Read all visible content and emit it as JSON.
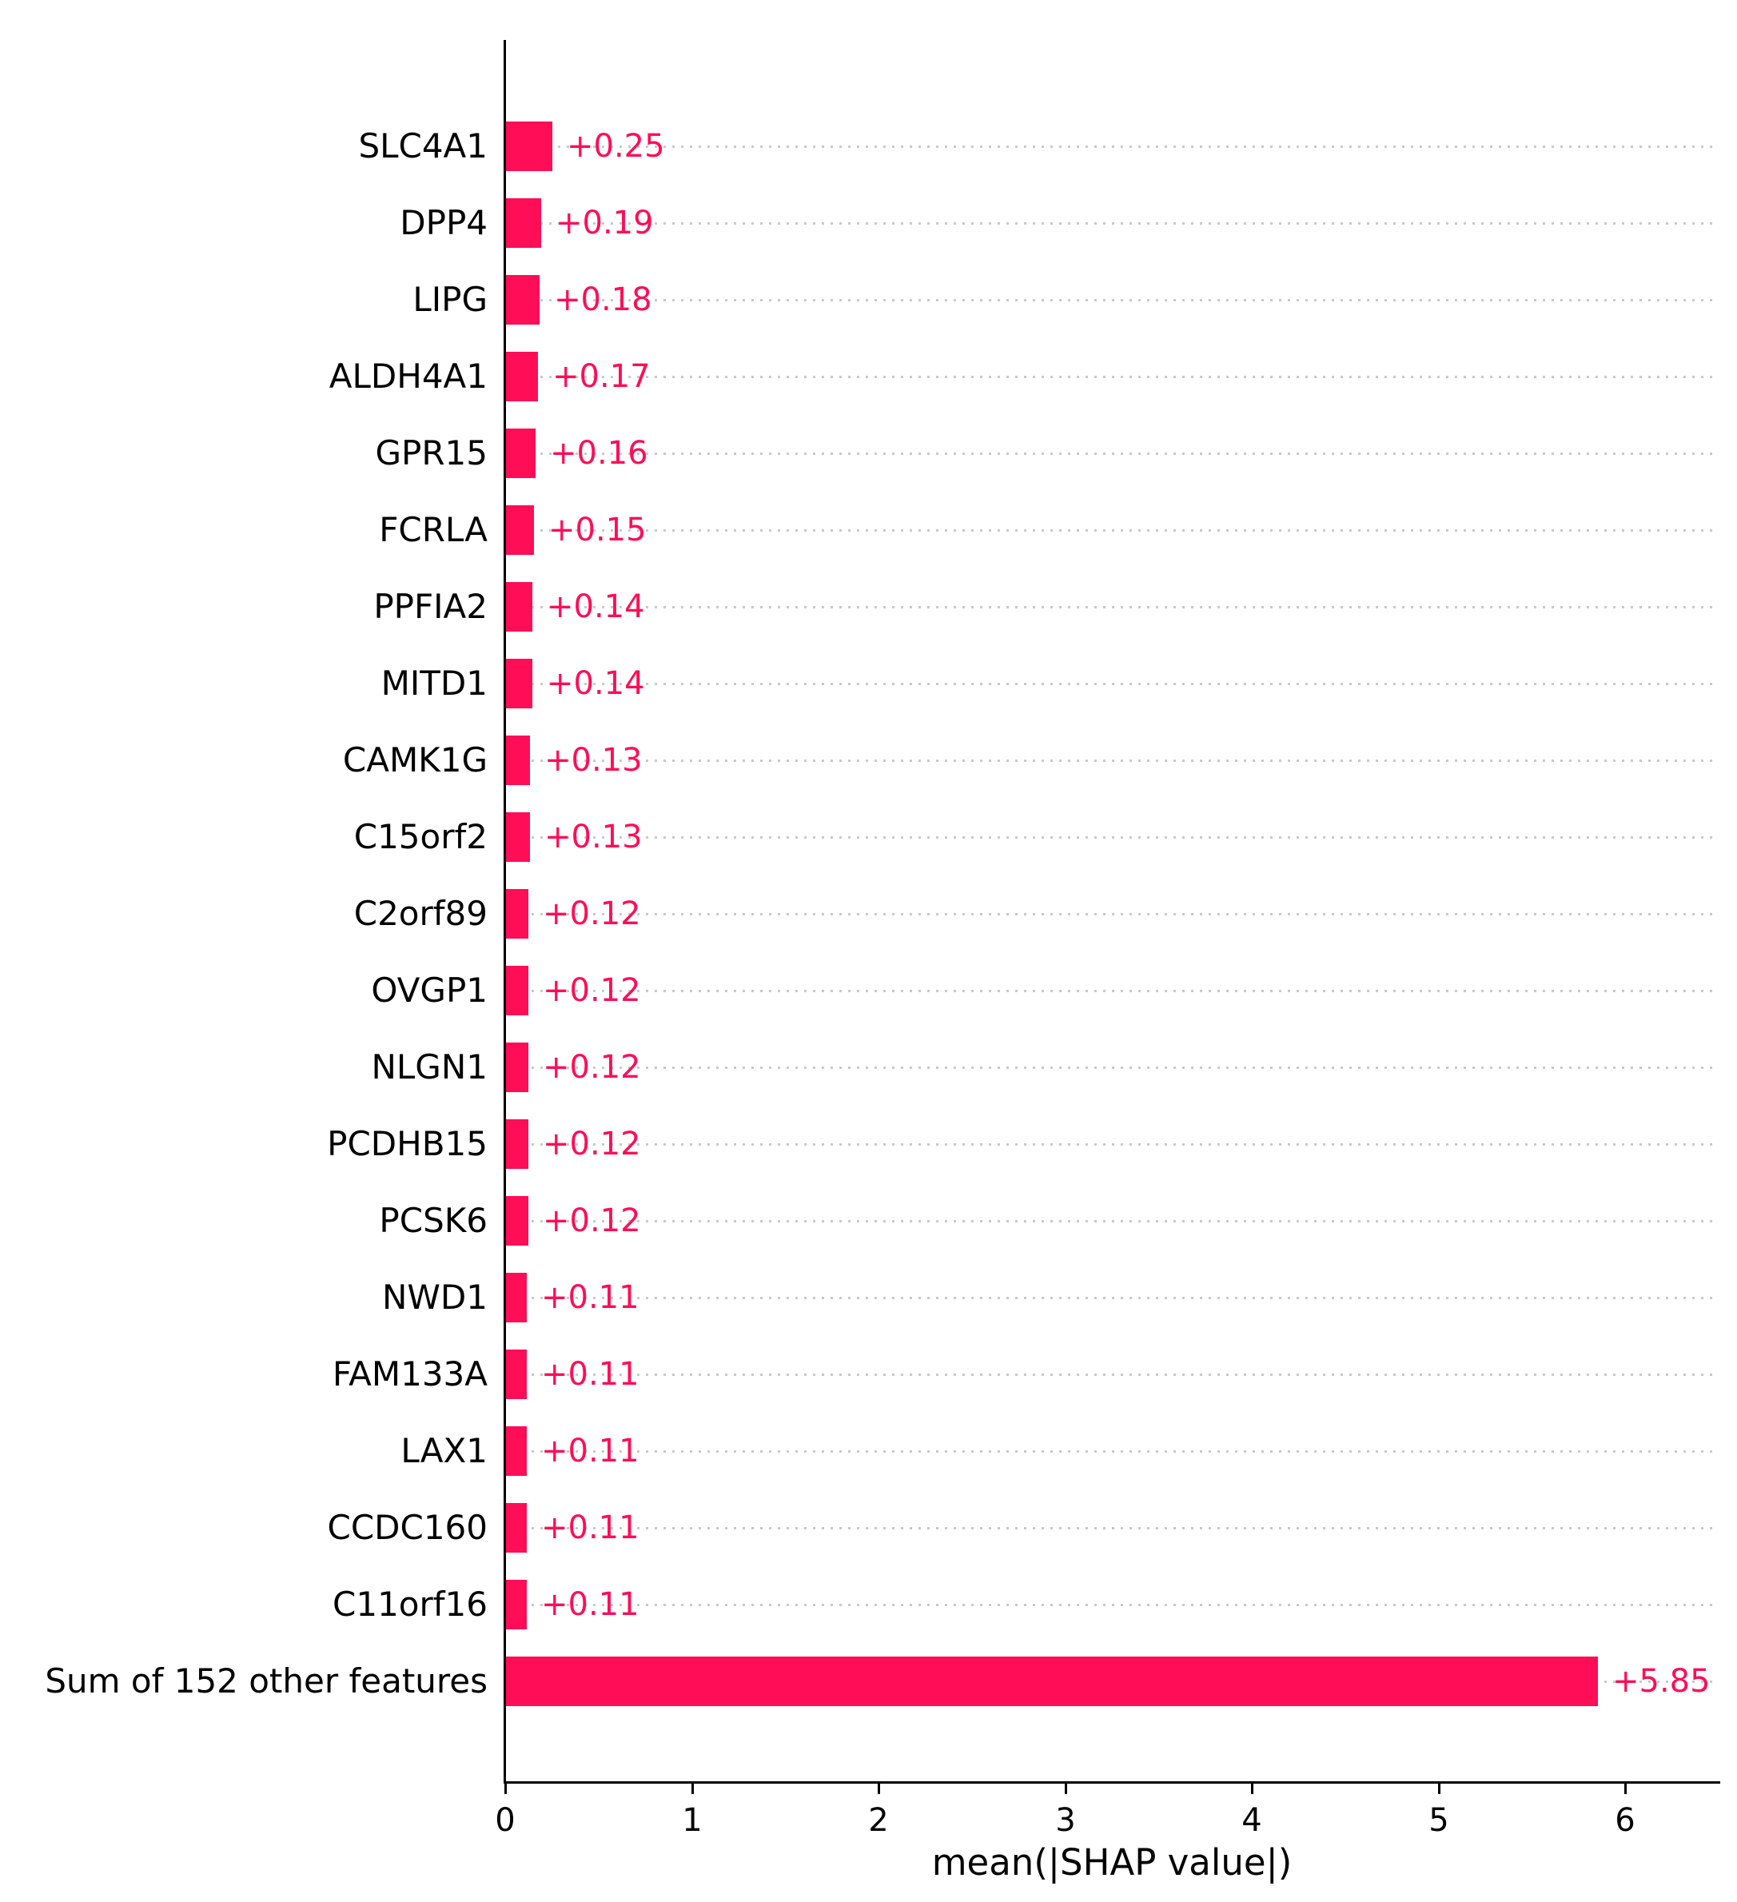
{
  "chart_data": {
    "type": "bar",
    "orientation": "horizontal",
    "xlabel": "mean(|SHAP value|)",
    "xlim": [
      0,
      6.5
    ],
    "x_ticks": [
      "0",
      "1",
      "2",
      "3",
      "4",
      "5",
      "6"
    ],
    "x_tick_values": [
      0,
      1,
      2,
      3,
      4,
      5,
      6
    ],
    "grid": "dotted-horizontal",
    "legend": false,
    "bar_color": "#ff0d57",
    "value_label_color": "#ff0d57",
    "axis_color": "#000000",
    "gridline_color": "#c9c9c9",
    "features": [
      {
        "label": "SLC4A1",
        "value": 0.25,
        "value_label": "+0.25"
      },
      {
        "label": "DPP4",
        "value": 0.19,
        "value_label": "+0.19"
      },
      {
        "label": "LIPG",
        "value": 0.18,
        "value_label": "+0.18"
      },
      {
        "label": "ALDH4A1",
        "value": 0.17,
        "value_label": "+0.17"
      },
      {
        "label": "GPR15",
        "value": 0.16,
        "value_label": "+0.16"
      },
      {
        "label": "FCRLA",
        "value": 0.15,
        "value_label": "+0.15"
      },
      {
        "label": "PPFIA2",
        "value": 0.14,
        "value_label": "+0.14"
      },
      {
        "label": "MITD1",
        "value": 0.14,
        "value_label": "+0.14"
      },
      {
        "label": "CAMK1G",
        "value": 0.13,
        "value_label": "+0.13"
      },
      {
        "label": "C15orf2",
        "value": 0.13,
        "value_label": "+0.13"
      },
      {
        "label": "C2orf89",
        "value": 0.12,
        "value_label": "+0.12"
      },
      {
        "label": "OVGP1",
        "value": 0.12,
        "value_label": "+0.12"
      },
      {
        "label": "NLGN1",
        "value": 0.12,
        "value_label": "+0.12"
      },
      {
        "label": "PCDHB15",
        "value": 0.12,
        "value_label": "+0.12"
      },
      {
        "label": "PCSK6",
        "value": 0.12,
        "value_label": "+0.12"
      },
      {
        "label": "NWD1",
        "value": 0.11,
        "value_label": "+0.11"
      },
      {
        "label": "FAM133A",
        "value": 0.11,
        "value_label": "+0.11"
      },
      {
        "label": "LAX1",
        "value": 0.11,
        "value_label": "+0.11"
      },
      {
        "label": "CCDC160",
        "value": 0.11,
        "value_label": "+0.11"
      },
      {
        "label": "C11orf16",
        "value": 0.11,
        "value_label": "+0.11"
      },
      {
        "label": "Sum of 152 other features",
        "value": 5.85,
        "value_label": "+5.85"
      }
    ]
  }
}
